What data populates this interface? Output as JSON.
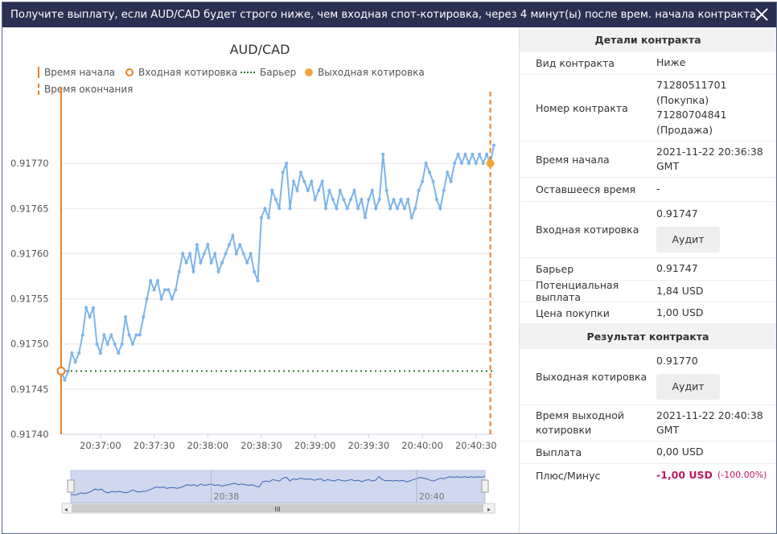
{
  "header": {
    "title": "Получите выплату, если AUD/CAD будет строго ниже, чем входная спот-котировка, через 4 минут(ы) после врем. начала контракта."
  },
  "chart": {
    "title": "AUD/CAD",
    "legend": {
      "start_time": "Время начала",
      "entry_spot": "Входная котировка",
      "barrier": "Барьер",
      "exit_spot": "Выходная котировка",
      "end_time": "Время окончания"
    },
    "navigator_labels": [
      "20:38",
      "20:40"
    ],
    "scrollbar_grip": "III",
    "colors": {
      "line": "#7cb5ec",
      "marker": "#e98024",
      "barrier": "#2c7a2c"
    }
  },
  "chart_data": {
    "type": "line",
    "title": "AUD/CAD",
    "xlabel": "",
    "ylabel": "",
    "x_ticks": [
      "20:37:00",
      "20:37:30",
      "20:38:00",
      "20:38:30",
      "20:39:00",
      "20:39:30",
      "20:40:00",
      "20:40:30"
    ],
    "y_ticks": [
      "0.91770",
      "0.91765",
      "0.91760",
      "0.91755",
      "0.91750",
      "0.91745",
      "0.91740"
    ],
    "ylim": [
      0.9174,
      0.91775
    ],
    "xlim": [
      "20:36:38",
      "20:40:40"
    ],
    "grid": true,
    "legend_position": "top-left",
    "start_time": "20:36:38",
    "end_time": "20:40:38",
    "entry_spot": 0.91747,
    "barrier": 0.91747,
    "exit_spot": 0.9177,
    "series": [
      {
        "values": [
          [
            "20:36:38",
            0.91747
          ],
          [
            "20:36:40",
            0.91746
          ],
          [
            "20:36:42",
            0.91747
          ],
          [
            "20:36:44",
            0.91749
          ],
          [
            "20:36:46",
            0.91748
          ],
          [
            "20:36:48",
            0.91749
          ],
          [
            "20:36:50",
            0.91751
          ],
          [
            "20:36:52",
            0.91754
          ],
          [
            "20:36:54",
            0.91753
          ],
          [
            "20:36:56",
            0.91754
          ],
          [
            "20:36:58",
            0.9175
          ],
          [
            "20:37:00",
            0.91749
          ],
          [
            "20:37:02",
            0.91751
          ],
          [
            "20:37:04",
            0.9175
          ],
          [
            "20:37:06",
            0.91751
          ],
          [
            "20:37:08",
            0.9175
          ],
          [
            "20:37:10",
            0.91749
          ],
          [
            "20:37:12",
            0.9175
          ],
          [
            "20:37:14",
            0.91753
          ],
          [
            "20:37:16",
            0.91751
          ],
          [
            "20:37:18",
            0.9175
          ],
          [
            "20:37:20",
            0.91751
          ],
          [
            "20:37:22",
            0.91751
          ],
          [
            "20:37:24",
            0.91753
          ],
          [
            "20:37:26",
            0.91755
          ],
          [
            "20:37:28",
            0.91757
          ],
          [
            "20:37:30",
            0.91756
          ],
          [
            "20:37:32",
            0.91757
          ],
          [
            "20:37:34",
            0.91755
          ],
          [
            "20:37:36",
            0.91756
          ],
          [
            "20:37:38",
            0.91756
          ],
          [
            "20:37:40",
            0.91755
          ],
          [
            "20:37:42",
            0.91756
          ],
          [
            "20:37:44",
            0.91758
          ],
          [
            "20:37:46",
            0.9176
          ],
          [
            "20:37:48",
            0.91759
          ],
          [
            "20:37:50",
            0.9176
          ],
          [
            "20:37:52",
            0.91758
          ],
          [
            "20:37:54",
            0.91761
          ],
          [
            "20:37:56",
            0.91759
          ],
          [
            "20:37:58",
            0.9176
          ],
          [
            "20:38:00",
            0.91761
          ],
          [
            "20:38:02",
            0.91759
          ],
          [
            "20:38:04",
            0.9176
          ],
          [
            "20:38:06",
            0.91758
          ],
          [
            "20:38:08",
            0.91759
          ],
          [
            "20:38:10",
            0.9176
          ],
          [
            "20:38:12",
            0.91761
          ],
          [
            "20:38:14",
            0.91762
          ],
          [
            "20:38:16",
            0.9176
          ],
          [
            "20:38:18",
            0.91761
          ],
          [
            "20:38:20",
            0.9176
          ],
          [
            "20:38:22",
            0.91759
          ],
          [
            "20:38:24",
            0.9176
          ],
          [
            "20:38:26",
            0.91758
          ],
          [
            "20:38:28",
            0.91757
          ],
          [
            "20:38:30",
            0.91764
          ],
          [
            "20:38:32",
            0.91765
          ],
          [
            "20:38:34",
            0.91764
          ],
          [
            "20:38:36",
            0.91767
          ],
          [
            "20:38:38",
            0.91766
          ],
          [
            "20:38:40",
            0.91765
          ],
          [
            "20:38:42",
            0.91769
          ],
          [
            "20:38:44",
            0.9177
          ],
          [
            "20:38:46",
            0.91765
          ],
          [
            "20:38:48",
            0.91768
          ],
          [
            "20:38:50",
            0.91767
          ],
          [
            "20:38:52",
            0.91769
          ],
          [
            "20:38:54",
            0.91768
          ],
          [
            "20:38:56",
            0.91767
          ],
          [
            "20:38:58",
            0.91768
          ],
          [
            "20:39:00",
            0.91766
          ],
          [
            "20:39:02",
            0.91767
          ],
          [
            "20:39:04",
            0.91768
          ],
          [
            "20:39:06",
            0.91765
          ],
          [
            "20:39:08",
            0.91767
          ],
          [
            "20:39:10",
            0.91766
          ],
          [
            "20:39:12",
            0.91765
          ],
          [
            "20:39:14",
            0.91767
          ],
          [
            "20:39:16",
            0.91766
          ],
          [
            "20:39:18",
            0.91765
          ],
          [
            "20:39:20",
            0.91766
          ],
          [
            "20:39:22",
            0.91767
          ],
          [
            "20:39:24",
            0.91765
          ],
          [
            "20:39:26",
            0.91766
          ],
          [
            "20:39:28",
            0.91764
          ],
          [
            "20:39:30",
            0.91766
          ],
          [
            "20:39:32",
            0.91767
          ],
          [
            "20:39:34",
            0.91765
          ],
          [
            "20:39:36",
            0.91766
          ],
          [
            "20:39:38",
            0.91771
          ],
          [
            "20:39:40",
            0.91767
          ],
          [
            "20:39:42",
            0.91765
          ],
          [
            "20:39:44",
            0.91766
          ],
          [
            "20:39:46",
            0.91765
          ],
          [
            "20:39:48",
            0.91766
          ],
          [
            "20:39:50",
            0.91765
          ],
          [
            "20:39:52",
            0.91766
          ],
          [
            "20:39:54",
            0.91764
          ],
          [
            "20:39:56",
            0.91765
          ],
          [
            "20:39:58",
            0.91767
          ],
          [
            "20:40:00",
            0.91768
          ],
          [
            "20:40:02",
            0.9177
          ],
          [
            "20:40:04",
            0.91769
          ],
          [
            "20:40:06",
            0.91768
          ],
          [
            "20:40:08",
            0.91766
          ],
          [
            "20:40:10",
            0.91765
          ],
          [
            "20:40:12",
            0.91767
          ],
          [
            "20:40:14",
            0.91769
          ],
          [
            "20:40:16",
            0.91768
          ],
          [
            "20:40:18",
            0.9177
          ],
          [
            "20:40:20",
            0.91771
          ],
          [
            "20:40:22",
            0.9177
          ],
          [
            "20:40:24",
            0.91771
          ],
          [
            "20:40:26",
            0.9177
          ],
          [
            "20:40:28",
            0.91771
          ],
          [
            "20:40:30",
            0.9177
          ],
          [
            "20:40:32",
            0.91771
          ],
          [
            "20:40:34",
            0.9177
          ],
          [
            "20:40:36",
            0.91771
          ],
          [
            "20:40:38",
            0.9177
          ],
          [
            "20:40:40",
            0.91772
          ]
        ]
      }
    ]
  },
  "details": {
    "title": "Детали контракта",
    "rows": {
      "contract_type": {
        "label": "Вид контракта",
        "value": "Ниже"
      },
      "contract_number": {
        "label": "Номер контракта",
        "value_lines": [
          "71280511701",
          "(Покупка)",
          "71280704841",
          "(Продажа)"
        ]
      },
      "start_time": {
        "label": "Время начала",
        "value_lines": [
          "2021-11-22 20:36:38",
          "GMT"
        ]
      },
      "remaining": {
        "label": "Оставшееся время",
        "value": "-"
      },
      "entry_spot": {
        "label": "Входная котировка",
        "value": "0.91747",
        "button": "Аудит"
      },
      "barrier": {
        "label": "Барьер",
        "value": "0.91747"
      },
      "payout": {
        "label": "Потенциальная выплата",
        "value": "1,84 USD"
      },
      "price": {
        "label": "Цена покупки",
        "value": "1,00 USD"
      }
    }
  },
  "result": {
    "title": "Результат контракта",
    "rows": {
      "exit_spot": {
        "label": "Выходная котировка",
        "value": "0.91770",
        "button": "Аудит"
      },
      "exit_time": {
        "label_lines": [
          "Время выходной",
          "котировки"
        ],
        "value_lines": [
          "2021-11-22 20:40:38",
          "GMT"
        ]
      },
      "payout": {
        "label": "Выплата",
        "value": "0,00 USD"
      },
      "profit": {
        "label": "Плюс/Минус",
        "value": "-1,00 USD",
        "pct": "(-100.00%)"
      }
    }
  }
}
